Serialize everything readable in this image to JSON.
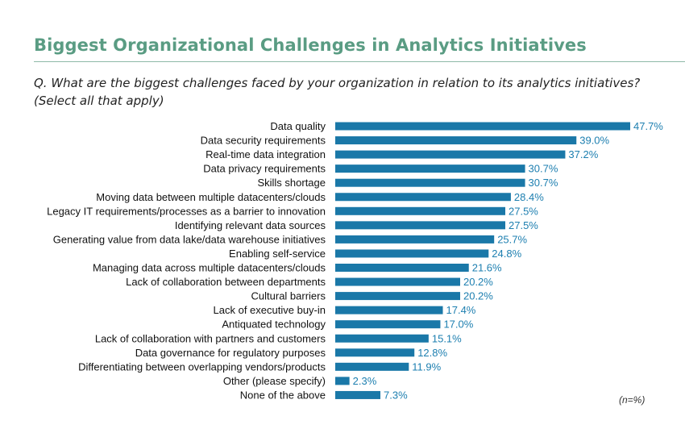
{
  "header": {
    "title": "Biggest Organizational Challenges in Analytics Initiatives",
    "question_line1": "Q. What are the biggest challenges faced by your organization in relation to its analytics initiatives?",
    "question_line2": "(Select all that apply)"
  },
  "footnote": "(n=%)",
  "colors": {
    "bar": "#1a78a8",
    "value_label": "#1d7fb0",
    "title": "#5a9c83"
  },
  "chart_data": {
    "type": "bar",
    "orientation": "horizontal",
    "title": "Biggest Organizational Challenges in Analytics Initiatives",
    "xlabel": "",
    "ylabel": "",
    "categories": [
      "Data quality",
      "Data security requirements",
      "Real-time data integration",
      "Data privacy requirements",
      "Skills shortage",
      "Moving data between multiple datacenters/clouds",
      "Legacy IT requirements/processes as a barrier to innovation",
      "Identifying relevant data sources",
      "Generating value from data lake/data warehouse initiatives",
      "Enabling self-service",
      "Managing data across multiple datacenters/clouds",
      "Lack of collaboration between departments",
      "Cultural barriers",
      "Lack of executive buy-in",
      "Antiquated technology",
      "Lack of collaboration with partners and customers",
      "Data governance for regulatory purposes",
      "Differentiating between overlapping vendors/products",
      "Other (please specify)",
      "None of the above"
    ],
    "values": [
      47.7,
      39.0,
      37.2,
      30.7,
      30.7,
      28.4,
      27.5,
      27.5,
      25.7,
      24.8,
      21.6,
      20.2,
      20.2,
      17.4,
      17.0,
      15.1,
      12.8,
      11.9,
      2.3,
      7.3
    ],
    "value_labels": [
      "47.7%",
      "39.0%",
      "37.2%",
      "30.7%",
      "30.7%",
      "28.4%",
      "27.5%",
      "27.5%",
      "25.7%",
      "24.8%",
      "21.6%",
      "20.2%",
      "20.2%",
      "17.4%",
      "17.0%",
      "15.1%",
      "12.8%",
      "11.9%",
      "2.3%",
      "7.3%"
    ],
    "xlim": [
      0,
      47.7
    ],
    "grid": false,
    "legend": "none"
  }
}
